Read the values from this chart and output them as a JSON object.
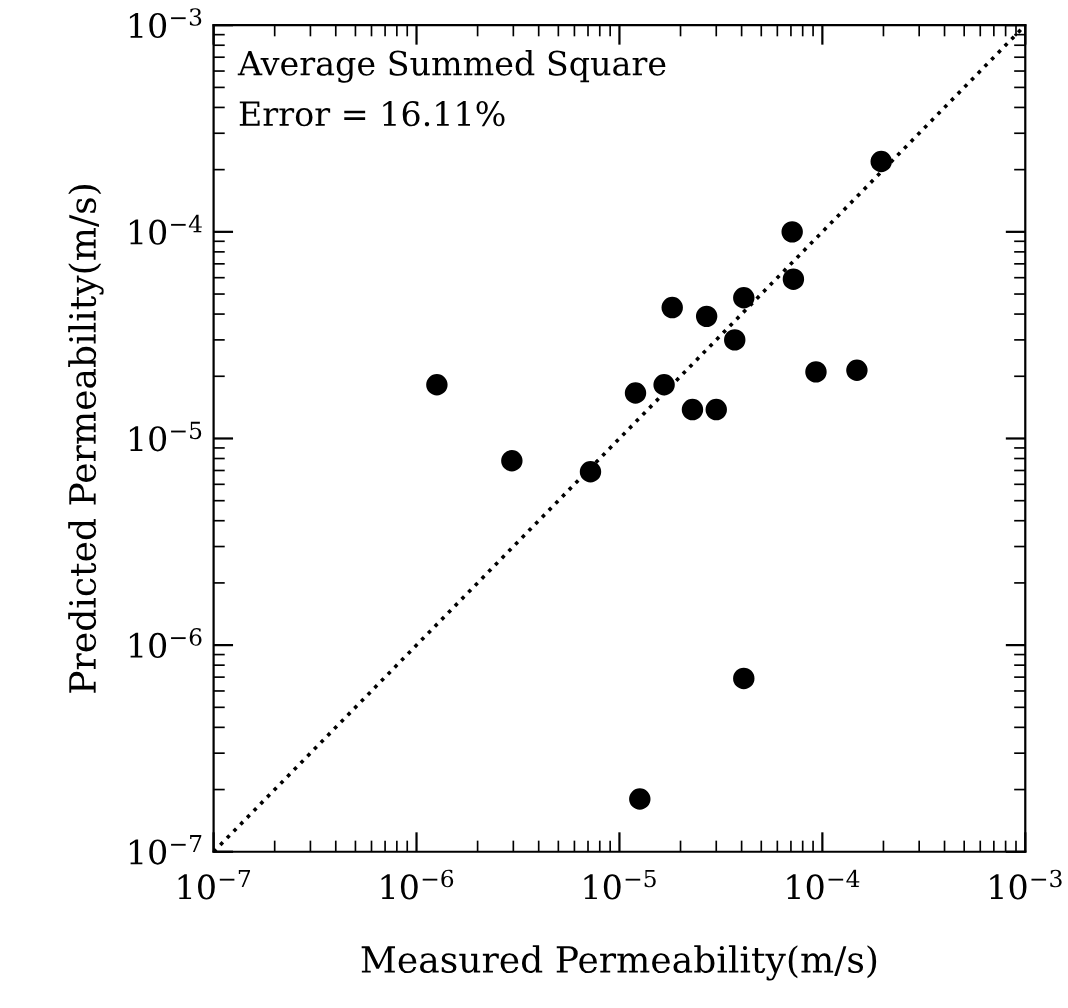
{
  "chart_data": {
    "type": "scatter",
    "xlabel": "Measured Permeability(m/s)",
    "ylabel": "Predicted Permeability(m/s)",
    "annotations": [
      "Average Summed Square\nError = 16.11%"
    ],
    "log": "xy",
    "grid": false,
    "legend": false,
    "marker": "circle",
    "xlim": [
      1e-07,
      0.001
    ],
    "ylim": [
      1e-07,
      0.001
    ],
    "xticks": [
      {
        "value": 1e-07,
        "label": "10$^{−7}$"
      },
      {
        "value": 1e-06,
        "label": "10$^{−6}$"
      },
      {
        "value": 1e-05,
        "label": "10$^{−5}$"
      },
      {
        "value": 0.0001,
        "label": "10$^{−4}$"
      },
      {
        "value": 0.001,
        "label": "10$^{−3}$"
      }
    ],
    "yticks": [
      {
        "value": 1e-07,
        "label": "10$^{−7}$"
      },
      {
        "value": 1e-06,
        "label": "10$^{−6}$"
      },
      {
        "value": 1e-05,
        "label": "10$^{−5}$"
      },
      {
        "value": 0.0001,
        "label": "10$^{−4}$"
      },
      {
        "value": 0.001,
        "label": "10$^{−3}$"
      }
    ],
    "series": [
      {
        "color": "#000000",
        "x": [
          1.26e-06,
          2.95e-06,
          7.2e-06,
          1.2e-05,
          1.66e-05,
          1.82e-05,
          2.29e-05,
          2.69e-05,
          3e-05,
          3.7e-05,
          4.1e-05,
          4.1e-05,
          1.26e-05,
          7.1e-05,
          7.2e-05,
          9.3e-05,
          0.000148,
          0.000195
        ],
        "values": [
          1.82e-05,
          7.8e-06,
          6.9e-06,
          1.66e-05,
          1.82e-05,
          4.3e-05,
          1.38e-05,
          3.9e-05,
          1.38e-05,
          3e-05,
          4.8e-05,
          6.9e-07,
          1.8e-07,
          0.0001,
          5.9e-05,
          2.1e-05,
          2.14e-05,
          0.000219
        ]
      },
      {
        "type": "line",
        "color": "#000000",
        "line_style": "dotted",
        "marker": "none",
        "x": [
          1e-07,
          0.001
        ],
        "values": [
          1e-07,
          0.001
        ]
      }
    ]
  }
}
